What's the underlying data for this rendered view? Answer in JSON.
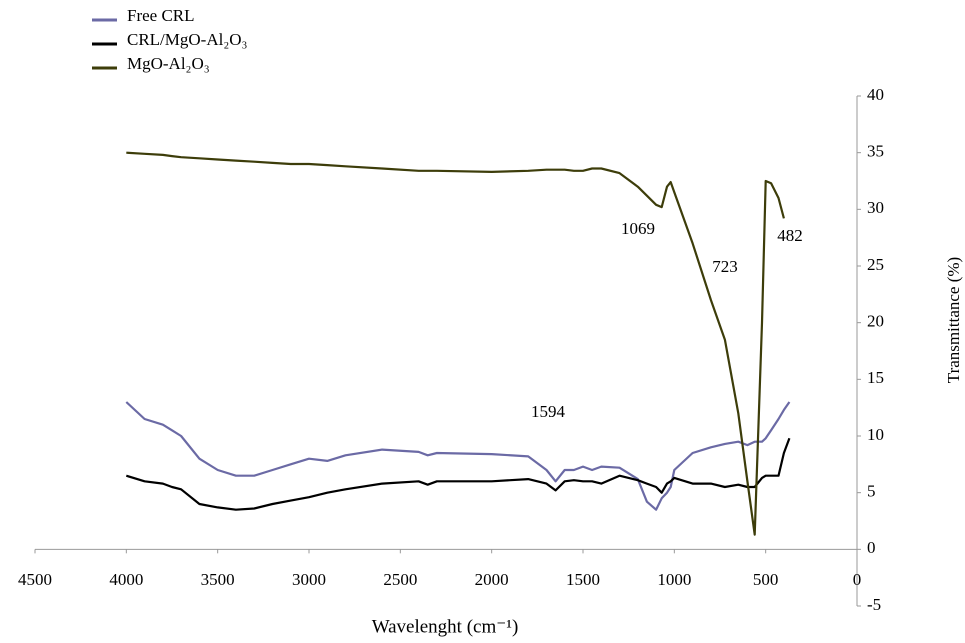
{
  "chart_data": {
    "type": "line",
    "x_label": "Wavelenght (cm⁻¹)",
    "y_label": "Transmittance (%)",
    "xlim": [
      4500,
      0
    ],
    "xticks": [
      4500,
      4000,
      3500,
      3000,
      2500,
      2000,
      1500,
      1000,
      500,
      0
    ],
    "ylim": [
      -5,
      40
    ],
    "yticks": [
      -5,
      0,
      5,
      10,
      15,
      20,
      25,
      30,
      35,
      40
    ],
    "annotations": [
      "1594",
      "1069",
      "723",
      "482"
    ],
    "x": [
      4000,
      3900,
      3800,
      3750,
      3700,
      3600,
      3500,
      3400,
      3300,
      3200,
      3100,
      3000,
      2900,
      2800,
      2600,
      2400,
      2350,
      2300,
      2000,
      1800,
      1700,
      1650,
      1600,
      1550,
      1500,
      1450,
      1400,
      1300,
      1200,
      1150,
      1100,
      1069,
      1040,
      1020,
      1000,
      900,
      800,
      723,
      650,
      600,
      560,
      520,
      500,
      470,
      430,
      400,
      370
    ],
    "series": [
      {
        "name": "Free CRL",
        "color": "#6b6aa5",
        "values": [
          13,
          11.5,
          11,
          10.5,
          10,
          8,
          7,
          6.5,
          6.5,
          7,
          7.5,
          8,
          7.8,
          8.3,
          8.8,
          8.6,
          8.3,
          8.5,
          8.4,
          8.2,
          7,
          6,
          7,
          7,
          7.3,
          7,
          7.3,
          7.2,
          6.2,
          4.2,
          3.5,
          4.5,
          5,
          5.5,
          7,
          8.5,
          9,
          9.3,
          9.5,
          9.2,
          9.5,
          9.5,
          9.8,
          10.5,
          11.5,
          12.3,
          13
        ]
      },
      {
        "name": "CRL/MgO-Al₂O₃",
        "color": "#000000",
        "values": [
          6.5,
          6,
          5.8,
          5.5,
          5.3,
          4,
          3.7,
          3.5,
          3.6,
          4,
          4.3,
          4.6,
          5,
          5.3,
          5.8,
          6,
          5.7,
          6,
          6,
          6.2,
          5.8,
          5.2,
          6,
          6.1,
          6,
          6,
          5.8,
          6.5,
          6.1,
          5.8,
          5.5,
          5,
          5.8,
          6,
          6.3,
          5.8,
          5.8,
          5.5,
          5.7,
          5.5,
          5.5,
          6.3,
          6.5,
          6.5,
          6.5,
          8.5,
          9.8
        ]
      },
      {
        "name": "MgO-Al₂O₃",
        "color": "#3d3d0a",
        "values": [
          35,
          34.9,
          34.8,
          34.7,
          34.6,
          34.5,
          34.4,
          34.3,
          34.2,
          34.1,
          34,
          34,
          33.9,
          33.8,
          33.6,
          33.4,
          33.4,
          33.4,
          33.3,
          33.4,
          33.5,
          33.5,
          33.5,
          33.4,
          33.4,
          33.6,
          33.6,
          33.2,
          32,
          31.2,
          30.4,
          30.2,
          32,
          32.4,
          31.5,
          27,
          22,
          18.5,
          12,
          6,
          1.3,
          20,
          32.5,
          32.3,
          31,
          29.2,
          null
        ]
      }
    ]
  }
}
